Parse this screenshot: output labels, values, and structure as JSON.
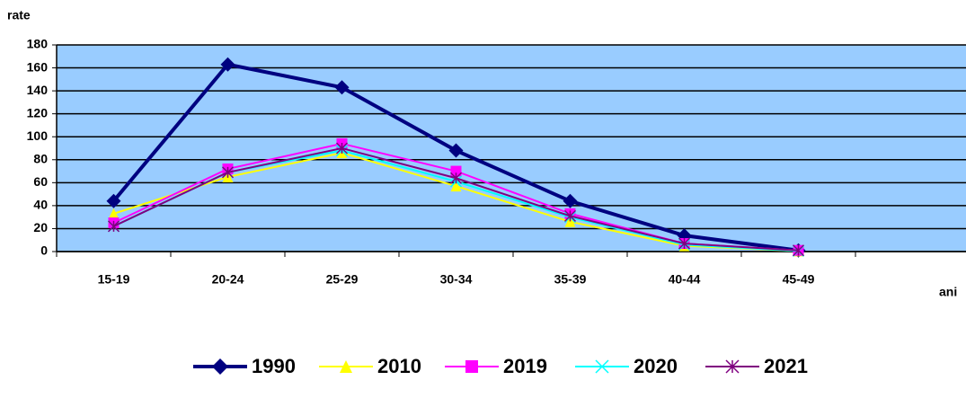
{
  "chart_data": {
    "type": "line",
    "y_label": "rate",
    "x_label": "ani",
    "categories": [
      "15-19",
      "20-24",
      "25-29",
      "30-34",
      "35-39",
      "40-44",
      "45-49",
      null
    ],
    "series": [
      {
        "name": "1990",
        "color": "#000080",
        "marker": "diamond",
        "values": [
          44,
          163,
          143,
          88,
          44,
          14,
          1,
          null
        ]
      },
      {
        "name": "2010",
        "color": "#ffff00",
        "marker": "triangle",
        "values": [
          33,
          65,
          86,
          57,
          26,
          5,
          0.5,
          null
        ]
      },
      {
        "name": "2019",
        "color": "#ff00ff",
        "marker": "square",
        "values": [
          25,
          72,
          94,
          70,
          33,
          7,
          1,
          null
        ]
      },
      {
        "name": "2020",
        "color": "#00ffff",
        "marker": "x",
        "values": [
          22,
          69,
          88,
          61,
          30,
          6,
          0.5,
          null
        ]
      },
      {
        "name": "2021",
        "color": "#800080",
        "marker": "star",
        "values": [
          22,
          69,
          90,
          64,
          31,
          7,
          1,
          null
        ]
      }
    ],
    "ylim": [
      0,
      180
    ],
    "yticks": [
      0,
      20,
      40,
      60,
      80,
      100,
      120,
      140,
      160,
      180
    ],
    "grid": true,
    "legend": "bottom",
    "background": "#99ccff"
  }
}
